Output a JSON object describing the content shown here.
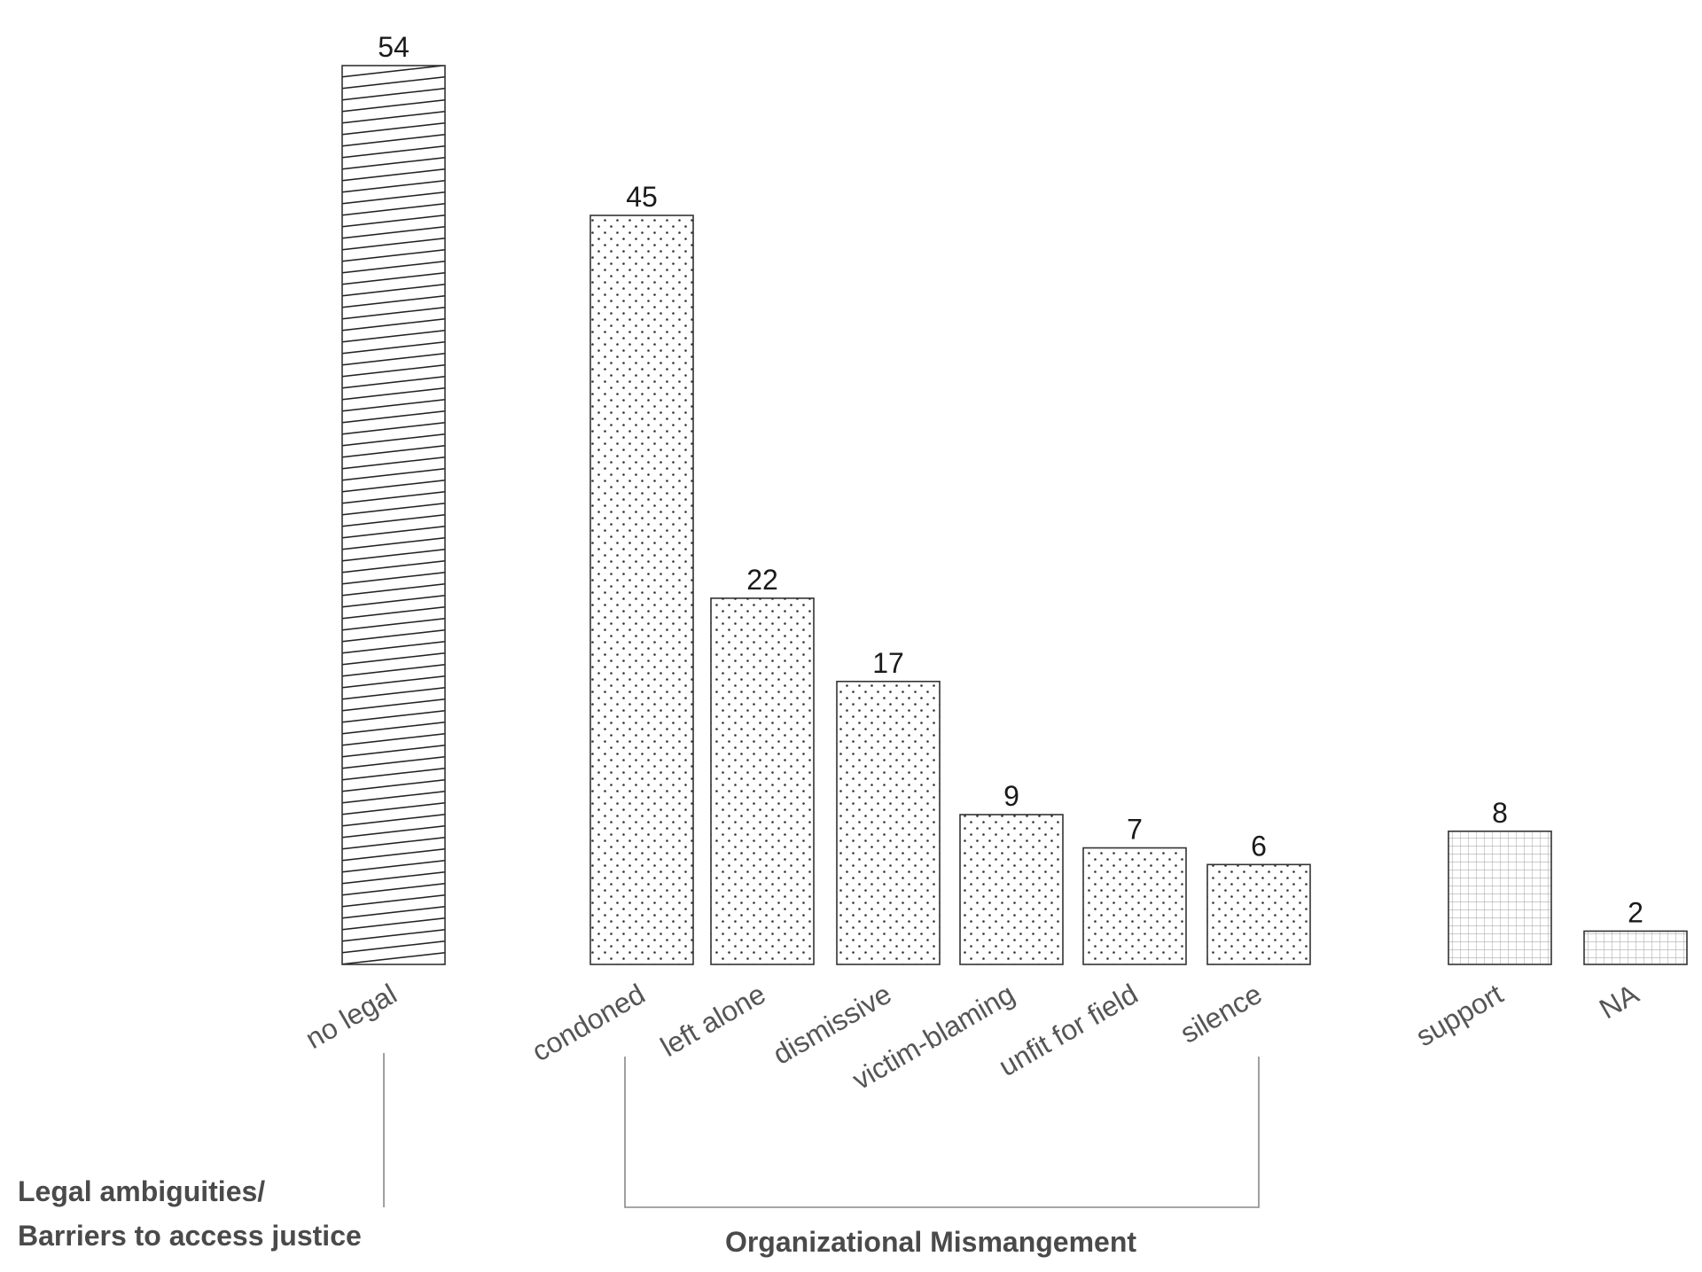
{
  "chart_data": {
    "type": "bar",
    "categories": [
      "no legal",
      "condoned",
      "left alone",
      "dismissive",
      "victim-blaming",
      "unfit for field",
      "silence",
      "support",
      "NA"
    ],
    "values": [
      54,
      45,
      22,
      17,
      9,
      7,
      6,
      8,
      2
    ],
    "bar_patterns": [
      "diagonal-hatch",
      "dots",
      "dots",
      "dots",
      "dots",
      "dots",
      "dots",
      "grid",
      "grid"
    ],
    "ylim": [
      0,
      54
    ],
    "grid": false,
    "legend": "none",
    "groups": [
      {
        "label_lines": [
          "Legal ambiguities/",
          "Barriers to access justice"
        ],
        "categories": [
          "no legal"
        ]
      },
      {
        "label_lines": [
          "Organizational Mismangement"
        ],
        "categories": [
          "condoned",
          "left alone",
          "dismissive",
          "victim-blaming",
          "unfit for field",
          "silence"
        ]
      }
    ]
  },
  "colors": {
    "stroke": "#333333",
    "text": "#1a1a1a",
    "category_text": "#555555",
    "group_text": "#4a4a4a",
    "bracket": "#888888"
  }
}
